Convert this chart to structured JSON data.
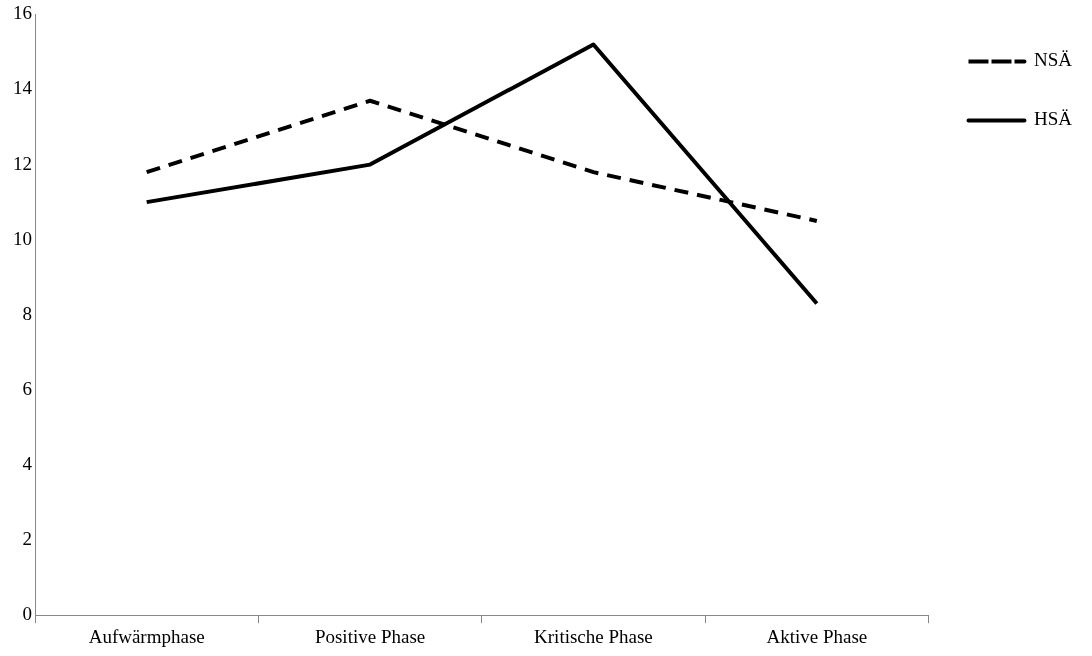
{
  "chart_data": {
    "type": "line",
    "categories": [
      "Aufwärmphase",
      "Positive Phase",
      "Kritische Phase",
      "Aktive Phase"
    ],
    "series": [
      {
        "name": "NSÄ",
        "color": "#000000",
        "values": [
          11.8,
          13.7,
          11.8,
          10.5
        ],
        "line_style": "dashed"
      },
      {
        "name": "HSÄ",
        "color": "#000000",
        "values": [
          11.0,
          12.0,
          15.2,
          8.3
        ],
        "line_style": "solid"
      }
    ],
    "ylim": [
      0,
      16
    ],
    "yticks": [
      0,
      2,
      4,
      6,
      8,
      10,
      12,
      14,
      16
    ],
    "grid": false,
    "legend": "top right",
    "marker": "none"
  }
}
